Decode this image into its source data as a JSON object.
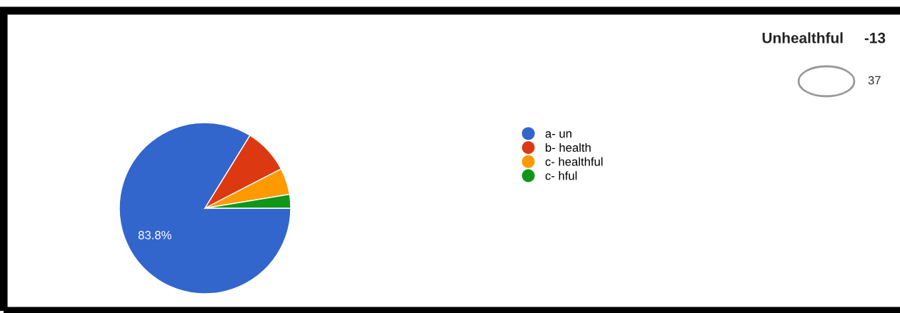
{
  "chart_data": {
    "type": "pie",
    "title": "Unhealthful     -13",
    "categories": [
      "a- un",
      "b- health",
      "c- healthful",
      "c- hful"
    ],
    "values": [
      83.8,
      8.6,
      5.0,
      2.6
    ],
    "colors": [
      "#3366cc",
      "#dc3912",
      "#ff9900",
      "#109618"
    ],
    "value_labels": [
      "83.8%",
      null,
      null,
      null
    ],
    "annotations": [
      "37"
    ],
    "legend": "right"
  }
}
